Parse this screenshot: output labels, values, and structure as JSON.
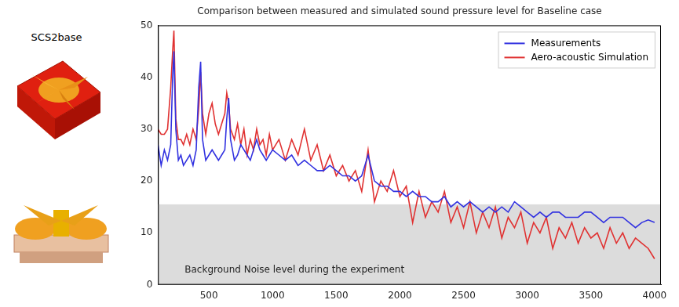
{
  "panel_label": "SCS2base",
  "chart_data": {
    "type": "line",
    "title": "Comparison between measured and simulated sound pressure level for Baseline case",
    "x": [
      100,
      125,
      150,
      175,
      200,
      215,
      225,
      240,
      260,
      280,
      300,
      325,
      350,
      375,
      400,
      420,
      435,
      450,
      475,
      500,
      525,
      550,
      575,
      600,
      625,
      640,
      655,
      670,
      700,
      725,
      750,
      775,
      800,
      825,
      850,
      875,
      900,
      925,
      950,
      975,
      1000,
      1050,
      1100,
      1150,
      1200,
      1250,
      1300,
      1350,
      1400,
      1450,
      1500,
      1550,
      1600,
      1650,
      1700,
      1750,
      1800,
      1850,
      1900,
      1950,
      2000,
      2050,
      2100,
      2150,
      2200,
      2250,
      2300,
      2350,
      2400,
      2450,
      2500,
      2550,
      2600,
      2650,
      2700,
      2750,
      2800,
      2850,
      2900,
      2950,
      3000,
      3050,
      3100,
      3150,
      3200,
      3250,
      3300,
      3350,
      3400,
      3450,
      3500,
      3550,
      3600,
      3650,
      3700,
      3750,
      3800,
      3850,
      3900,
      3950,
      4000
    ],
    "series": [
      {
        "name": "Measurements",
        "color": "#3232e0",
        "values": [
          27,
          23,
          26,
          24,
          27,
          40,
          45,
          30,
          24,
          25,
          23,
          24,
          25,
          23,
          26,
          38,
          43,
          28,
          24,
          25,
          26,
          25,
          24,
          25,
          26,
          32,
          36,
          28,
          24,
          25,
          27,
          26,
          25,
          24,
          26,
          28,
          26,
          25,
          24,
          25,
          26,
          25,
          24,
          25,
          23,
          24,
          23,
          22,
          22,
          23,
          22,
          21,
          21,
          20,
          21,
          25,
          20,
          19,
          19,
          18,
          18,
          17,
          18,
          17,
          17,
          16,
          16,
          17,
          15,
          16,
          15,
          16,
          15,
          14,
          15,
          14,
          15,
          14,
          16,
          15,
          14,
          13,
          14,
          13,
          14,
          14,
          13,
          13,
          13,
          14,
          14,
          13,
          12,
          13,
          13,
          13,
          12,
          11,
          12,
          12.5,
          12
        ]
      },
      {
        "name": "Aero-acoustic Simulation",
        "color": "#e03232",
        "values": [
          30,
          29,
          29,
          30,
          38,
          45,
          49,
          32,
          28,
          28,
          27,
          29,
          27,
          30,
          28,
          34,
          41,
          33,
          29,
          33,
          35,
          31,
          29,
          31,
          33,
          37,
          35,
          30,
          28,
          31,
          27,
          30,
          25,
          28,
          26,
          30,
          27,
          28,
          25,
          29,
          26,
          28,
          24,
          28,
          25,
          30,
          24,
          27,
          22,
          25,
          21,
          23,
          20,
          22,
          18,
          26,
          16,
          20,
          18,
          22,
          17,
          19,
          12,
          18,
          13,
          16,
          14,
          18,
          12,
          15,
          11,
          16,
          10,
          14,
          11,
          15,
          9,
          13,
          11,
          14,
          8,
          12,
          10,
          13,
          7,
          11,
          9,
          12,
          8,
          11,
          9,
          10,
          7,
          11,
          8,
          10,
          7,
          9,
          8,
          7,
          5
        ]
      }
    ],
    "xlim": [
      100,
      4050
    ],
    "xticks": [
      500,
      1000,
      1500,
      2000,
      2500,
      3000,
      3500,
      4000
    ],
    "ylim": [
      0,
      50
    ],
    "yticks": [
      0,
      10,
      20,
      30,
      40,
      50
    ],
    "grid": false,
    "legend": "upper right",
    "background_noise": {
      "level": 15.5,
      "label": "Background Noise level during the experiment"
    }
  }
}
